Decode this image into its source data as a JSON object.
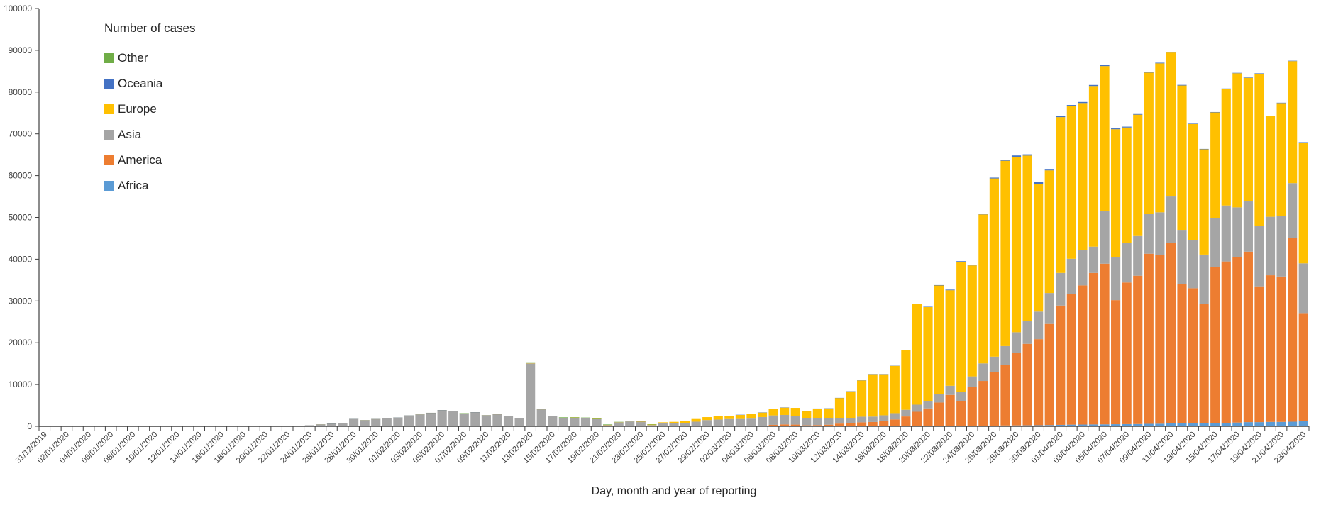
{
  "legend": {
    "title": "Number of cases",
    "items": [
      {
        "label": "Other",
        "color": "#70AD47"
      },
      {
        "label": "Oceania",
        "color": "#4472C4"
      },
      {
        "label": "Europe",
        "color": "#FFC000"
      },
      {
        "label": "Asia",
        "color": "#A5A5A5"
      },
      {
        "label": "America",
        "color": "#ED7D31"
      },
      {
        "label": "Africa",
        "color": "#5B9BD5"
      }
    ]
  },
  "chart_data": {
    "type": "bar",
    "stacked": true,
    "title": "",
    "xlabel": "Day, month and year of reporting",
    "ylabel": "",
    "ylim": [
      0,
      100000
    ],
    "yticks": [
      0,
      10000,
      20000,
      30000,
      40000,
      50000,
      60000,
      70000,
      80000,
      90000,
      100000
    ],
    "grid": false,
    "legend_position": "top-left-inside",
    "x_label_interval": 2,
    "axis_color": "#404040",
    "tick_label_color": "#404040",
    "categories": [
      "31/12/2019",
      "01/01/2020",
      "02/01/2020",
      "03/01/2020",
      "04/01/2020",
      "05/01/2020",
      "06/01/2020",
      "07/01/2020",
      "08/01/2020",
      "09/01/2020",
      "10/01/2020",
      "11/01/2020",
      "12/01/2020",
      "13/01/2020",
      "14/01/2020",
      "15/01/2020",
      "16/01/2020",
      "17/01/2020",
      "18/01/2020",
      "19/01/2020",
      "20/01/2020",
      "21/01/2020",
      "22/01/2020",
      "23/01/2020",
      "24/01/2020",
      "25/01/2020",
      "26/01/2020",
      "27/01/2020",
      "28/01/2020",
      "29/01/2020",
      "30/01/2020",
      "31/01/2020",
      "01/02/2020",
      "02/02/2020",
      "03/02/2020",
      "04/02/2020",
      "05/02/2020",
      "06/02/2020",
      "07/02/2020",
      "08/02/2020",
      "09/02/2020",
      "10/02/2020",
      "11/02/2020",
      "12/02/2020",
      "13/02/2020",
      "14/02/2020",
      "15/02/2020",
      "16/02/2020",
      "17/02/2020",
      "18/02/2020",
      "19/02/2020",
      "20/02/2020",
      "21/02/2020",
      "22/02/2020",
      "23/02/2020",
      "24/02/2020",
      "25/02/2020",
      "26/02/2020",
      "27/02/2020",
      "28/02/2020",
      "29/02/2020",
      "01/03/2020",
      "02/03/2020",
      "03/03/2020",
      "04/03/2020",
      "05/03/2020",
      "06/03/2020",
      "07/03/2020",
      "08/03/2020",
      "09/03/2020",
      "10/03/2020",
      "11/03/2020",
      "12/03/2020",
      "13/03/2020",
      "14/03/2020",
      "15/03/2020",
      "16/03/2020",
      "17/03/2020",
      "18/03/2020",
      "19/03/2020",
      "20/03/2020",
      "21/03/2020",
      "22/03/2020",
      "23/03/2020",
      "24/03/2020",
      "25/03/2020",
      "26/03/2020",
      "27/03/2020",
      "28/03/2020",
      "29/03/2020",
      "30/03/2020",
      "31/03/2020",
      "01/04/2020",
      "02/04/2020",
      "03/04/2020",
      "04/04/2020",
      "05/04/2020",
      "06/04/2020",
      "07/04/2020",
      "08/04/2020",
      "09/04/2020",
      "10/04/2020",
      "11/04/2020",
      "12/04/2020",
      "13/04/2020",
      "14/04/2020",
      "15/04/2020",
      "16/04/2020",
      "17/04/2020",
      "18/04/2020",
      "19/04/2020",
      "20/04/2020",
      "21/04/2020",
      "22/04/2020",
      "23/04/2020"
    ],
    "series": [
      {
        "name": "Africa",
        "color": "#5B9BD5",
        "values": [
          0,
          0,
          0,
          0,
          0,
          0,
          0,
          0,
          0,
          0,
          0,
          0,
          0,
          0,
          0,
          0,
          0,
          0,
          0,
          0,
          0,
          0,
          0,
          0,
          0,
          0,
          0,
          0,
          0,
          0,
          0,
          0,
          0,
          0,
          0,
          0,
          0,
          0,
          0,
          0,
          0,
          0,
          0,
          0,
          0,
          0,
          0,
          0,
          0,
          0,
          0,
          0,
          0,
          0,
          0,
          0,
          0,
          0,
          0,
          0,
          0,
          0,
          0,
          0,
          0,
          5,
          10,
          10,
          10,
          10,
          10,
          10,
          15,
          20,
          25,
          30,
          40,
          50,
          60,
          80,
          90,
          100,
          110,
          120,
          150,
          160,
          170,
          200,
          220,
          240,
          260,
          300,
          350,
          400,
          420,
          450,
          470,
          500,
          520,
          540,
          600,
          620,
          700,
          720,
          750,
          800,
          820,
          850,
          900,
          1000,
          1000,
          1050,
          1050,
          1100,
          1200
        ]
      },
      {
        "name": "America",
        "color": "#ED7D31",
        "values": [
          0,
          0,
          0,
          0,
          0,
          0,
          0,
          0,
          0,
          0,
          0,
          0,
          0,
          0,
          0,
          0,
          0,
          0,
          0,
          0,
          0,
          0,
          0,
          0,
          0,
          2,
          3,
          2,
          2,
          1,
          2,
          4,
          4,
          6,
          3,
          2,
          3,
          2,
          3,
          4,
          1,
          2,
          1,
          0,
          3,
          3,
          1,
          1,
          2,
          1,
          2,
          1,
          6,
          19,
          0,
          0,
          20,
          20,
          25,
          20,
          70,
          60,
          110,
          60,
          120,
          110,
          340,
          450,
          400,
          230,
          290,
          380,
          640,
          690,
          930,
          1000,
          1200,
          1600,
          2300,
          3400,
          4200,
          5600,
          7400,
          5900,
          9200,
          10700,
          12800,
          14500,
          17300,
          19500,
          20600,
          24200,
          28550,
          31300,
          33300,
          36250,
          38450,
          29700,
          33900,
          35500,
          40700,
          40300,
          43200,
          33400,
          32300,
          28500,
          37300,
          38600,
          39600,
          40800,
          32500,
          35100,
          34800,
          44000,
          25900
        ]
      },
      {
        "name": "Asia",
        "color": "#A5A5A5",
        "values": [
          27,
          0,
          17,
          0,
          15,
          0,
          0,
          0,
          0,
          0,
          0,
          0,
          0,
          0,
          0,
          0,
          4,
          17,
          136,
          19,
          139,
          77,
          150,
          97,
          259,
          441,
          665,
          780,
          1745,
          1455,
          1733,
          1963,
          2093,
          2575,
          2818,
          3222,
          3874,
          3679,
          3074,
          3371,
          2642,
          2900,
          2428,
          1979,
          15048,
          4021,
          2395,
          1940,
          2049,
          1955,
          1750,
          320,
          940,
          1050,
          1010,
          300,
          740,
          700,
          760,
          1090,
          1430,
          1560,
          1640,
          1700,
          1720,
          2100,
          2260,
          2260,
          2100,
          1700,
          1650,
          1500,
          1300,
          1250,
          1350,
          1300,
          1400,
          1500,
          1600,
          1700,
          1800,
          2000,
          2200,
          2200,
          2600,
          4200,
          3700,
          4500,
          5000,
          5500,
          6600,
          7400,
          7800,
          8400,
          8400,
          6300,
          12600,
          10300,
          9400,
          9500,
          9500,
          10300,
          11100,
          12900,
          11600,
          11800,
          11700,
          13400,
          11900,
          12100,
          14500,
          14000,
          14500,
          13100,
          11900
        ]
      },
      {
        "name": "Europe",
        "color": "#FFC000",
        "values": [
          0,
          0,
          0,
          0,
          0,
          0,
          0,
          0,
          0,
          0,
          0,
          0,
          0,
          0,
          0,
          0,
          0,
          0,
          0,
          0,
          0,
          0,
          0,
          0,
          0,
          3,
          3,
          5,
          4,
          8,
          3,
          11,
          16,
          7,
          5,
          7,
          13,
          13,
          10,
          9,
          7,
          12,
          4,
          4,
          56,
          60,
          39,
          15,
          50,
          24,
          20,
          19,
          44,
          61,
          120,
          110,
          200,
          350,
          475,
          640,
          700,
          780,
          690,
          950,
          1050,
          1070,
          1490,
          1750,
          1900,
          1660,
          2290,
          2400,
          4830,
          6420,
          8670,
          10150,
          9830,
          11330,
          14330,
          24050,
          22430,
          26000,
          22850,
          31150,
          26550,
          35650,
          42650,
          44350,
          42000,
          39550,
          30600,
          29350,
          37300,
          36500,
          35250,
          38450,
          34700,
          30600,
          27700,
          29050,
          33850,
          35650,
          34450,
          34550,
          27700,
          25200,
          25300,
          27900,
          32100,
          29500,
          36400,
          24100,
          27000,
          29200,
          28900
        ]
      },
      {
        "name": "Oceania",
        "color": "#4472C4",
        "values": [
          0,
          0,
          0,
          0,
          0,
          0,
          0,
          0,
          0,
          0,
          0,
          0,
          0,
          0,
          0,
          0,
          0,
          0,
          0,
          0,
          0,
          0,
          0,
          0,
          0,
          4,
          4,
          0,
          2,
          2,
          2,
          2,
          2,
          2,
          1,
          2,
          2,
          3,
          3,
          3,
          3,
          5,
          0,
          0,
          0,
          6,
          0,
          0,
          0,
          0,
          0,
          0,
          0,
          60,
          60,
          0,
          0,
          0,
          0,
          0,
          0,
          0,
          60,
          60,
          0,
          60,
          110,
          60,
          0,
          10,
          15,
          15,
          25,
          30,
          35,
          30,
          40,
          35,
          30,
          90,
          90,
          100,
          150,
          150,
          200,
          200,
          200,
          250,
          300,
          300,
          350,
          350,
          300,
          300,
          250,
          250,
          200,
          200,
          200,
          150,
          150,
          150,
          150,
          150,
          100,
          100,
          100,
          100,
          100,
          100,
          100,
          100,
          100,
          100,
          100
        ]
      },
      {
        "name": "Other",
        "color": "#70AD47",
        "values": [
          0,
          0,
          0,
          0,
          0,
          0,
          0,
          0,
          0,
          0,
          0,
          0,
          0,
          0,
          0,
          0,
          0,
          0,
          0,
          0,
          0,
          0,
          0,
          0,
          0,
          0,
          0,
          0,
          0,
          0,
          0,
          0,
          0,
          0,
          0,
          0,
          0,
          0,
          61,
          0,
          0,
          65,
          40,
          39,
          44,
          60,
          65,
          200,
          99,
          120,
          128,
          110,
          80,
          0,
          0,
          100,
          0,
          0,
          100,
          0,
          0,
          0,
          0,
          0,
          0,
          0,
          0,
          0,
          0,
          0,
          0,
          0,
          0,
          0,
          0,
          0,
          0,
          0,
          0,
          0,
          0,
          0,
          0,
          0,
          0,
          0,
          0,
          0,
          0,
          0,
          0,
          0,
          0,
          0,
          0,
          0,
          0,
          0,
          0,
          0,
          0,
          0,
          0,
          0,
          0,
          0,
          0,
          0,
          0,
          0,
          0,
          0,
          0,
          0,
          0
        ]
      }
    ]
  }
}
